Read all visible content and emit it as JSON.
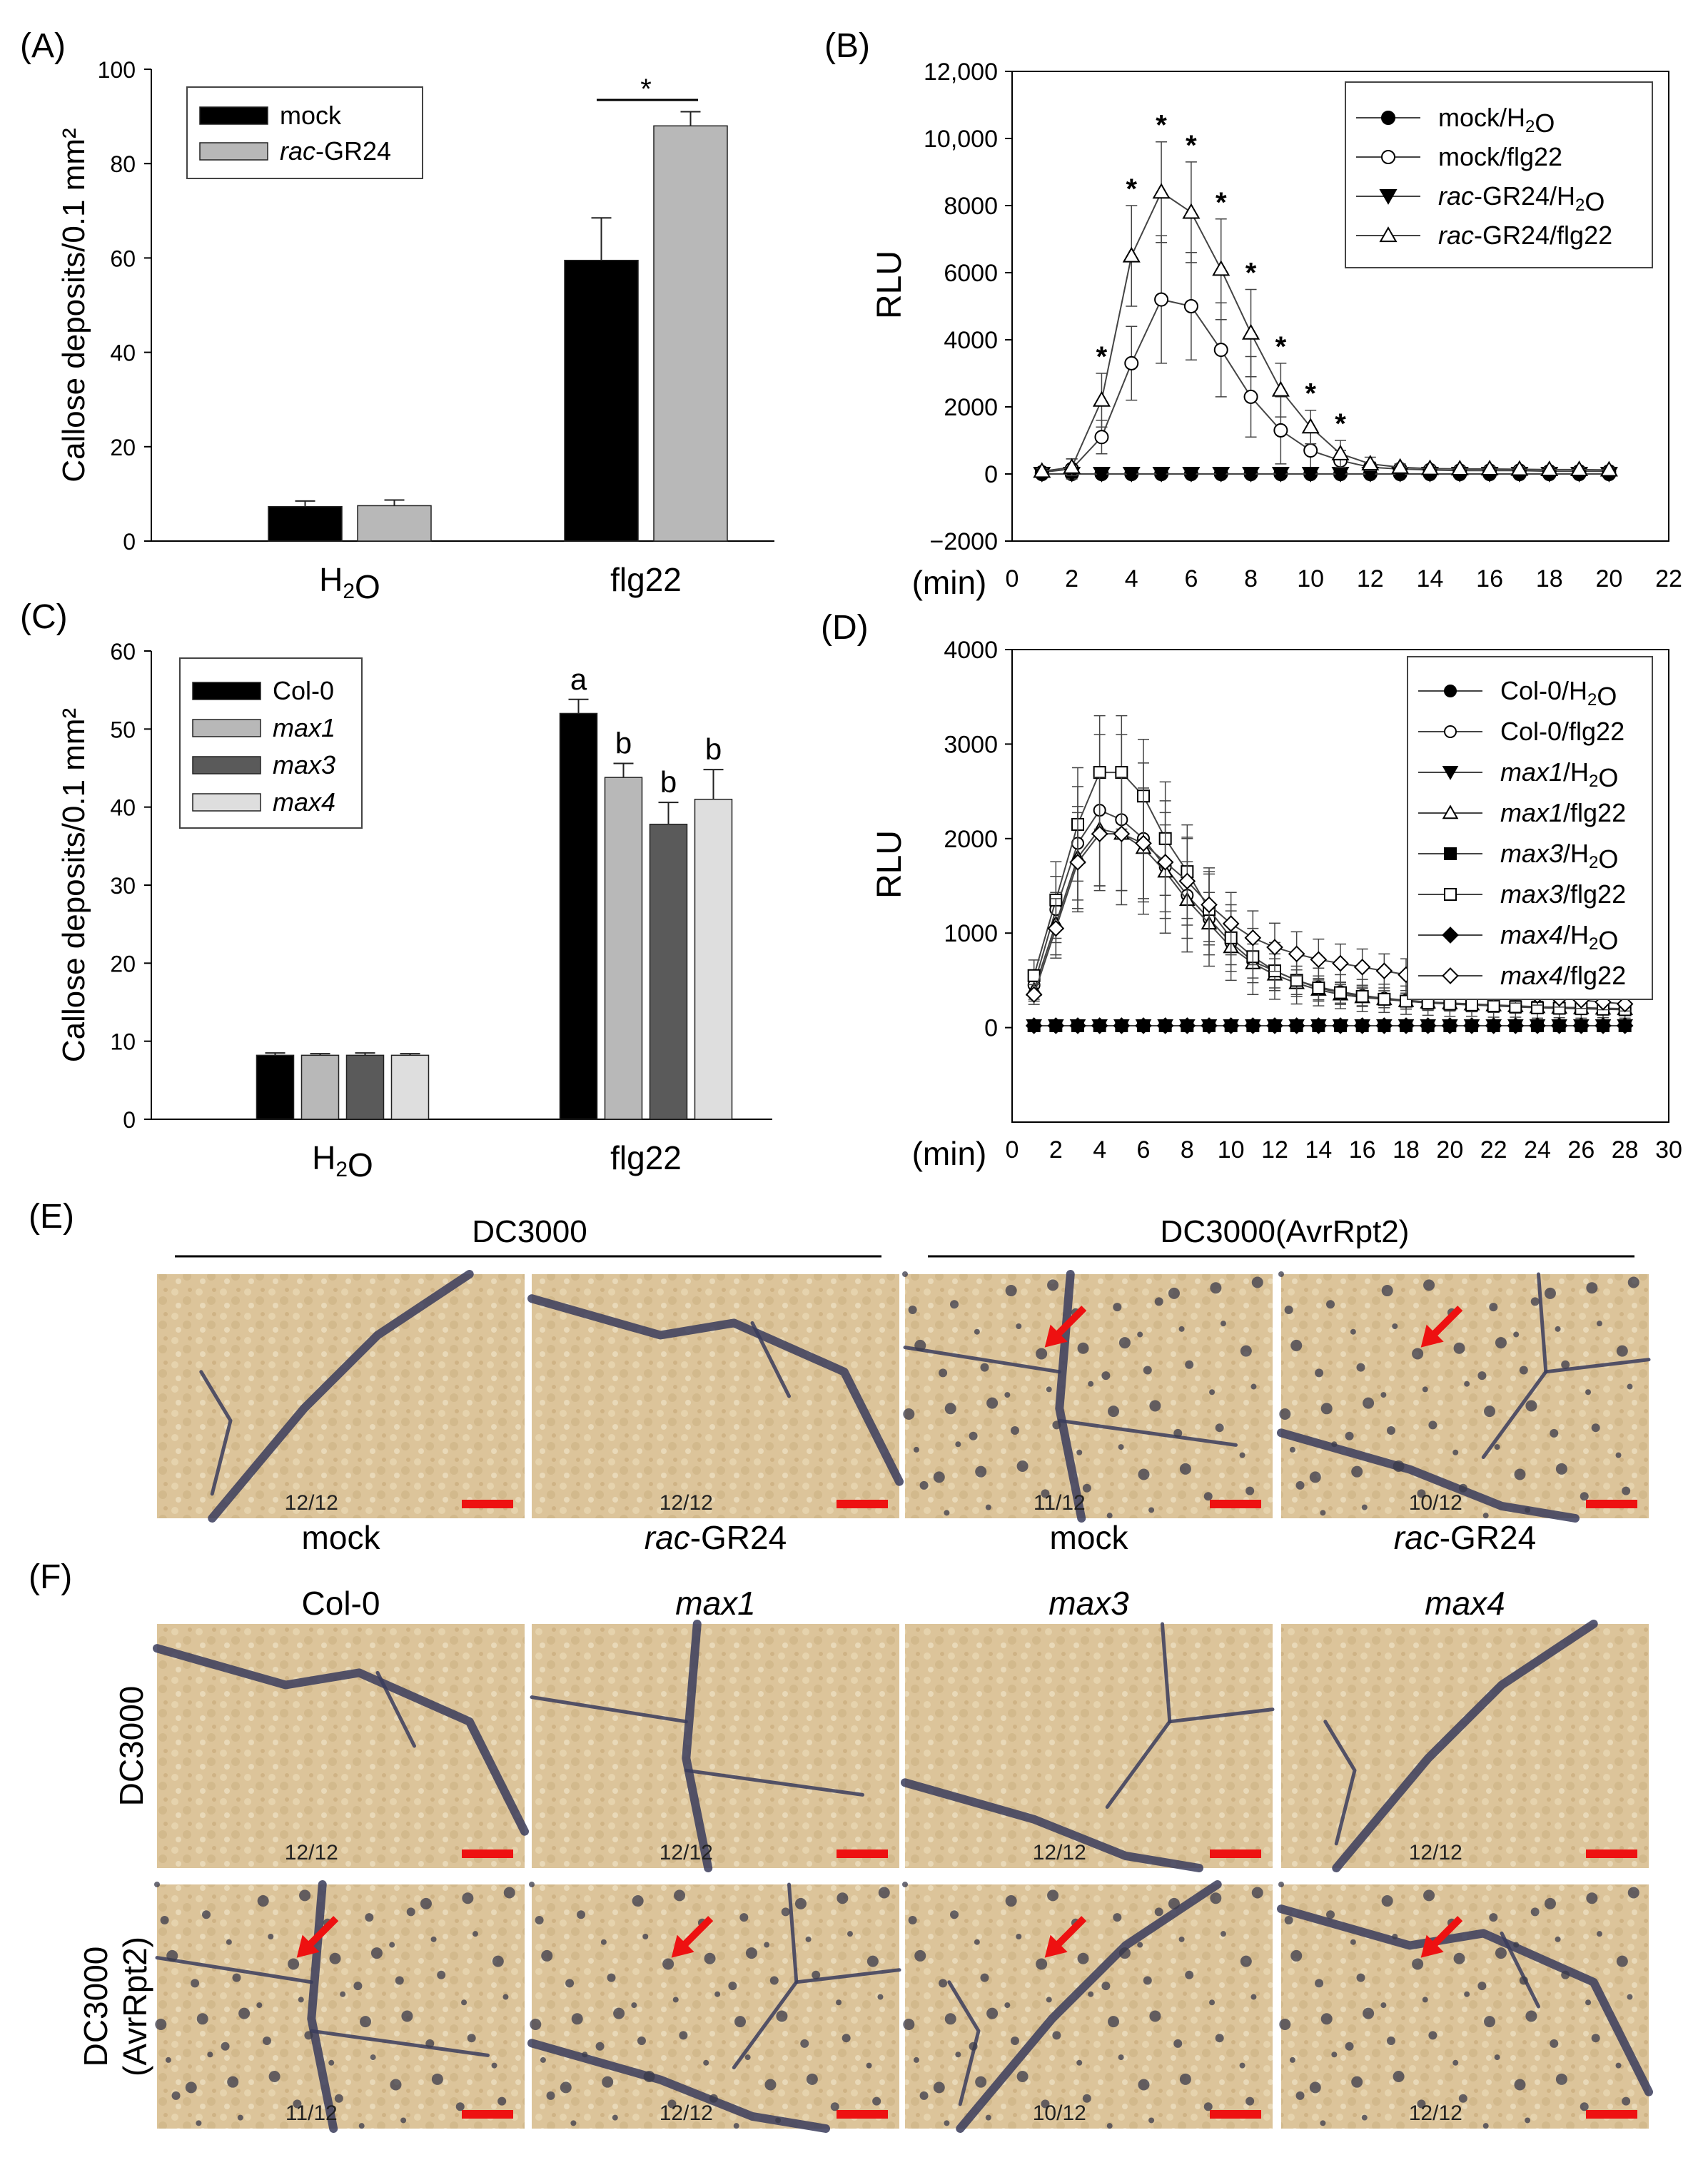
{
  "panels": {
    "a": "(A)",
    "b": "(B)",
    "c": "(C)",
    "d": "(D)",
    "e": "(E)",
    "f": "(F)"
  },
  "colors": {
    "black": "#000000",
    "gray_light": "#b8b8b8",
    "gray_dark": "#5a5a5a",
    "gray_pale": "#dedede",
    "leaf": "#dcc49a",
    "vein": "#35375a",
    "scale": "#ee1111"
  },
  "chart_data": [
    {
      "id": "A",
      "type": "bar",
      "ylabel": "Callose deposits/0.1 mm²",
      "ylim": [
        0,
        100
      ],
      "yticks": [
        0,
        20,
        40,
        60,
        80,
        100
      ],
      "categories": [
        "H₂O",
        "flg22"
      ],
      "series": [
        {
          "name": "mock",
          "color": "#000000",
          "values": [
            7.3,
            59.5
          ],
          "errors": [
            1.2,
            9
          ]
        },
        {
          "name": "rac-GR24",
          "color": "#b8b8b8",
          "values": [
            7.5,
            88
          ],
          "errors": [
            1.2,
            3
          ]
        }
      ],
      "annotations": [
        {
          "text": "*",
          "category": "flg22"
        }
      ],
      "legend": [
        "mock",
        "rac-GR24"
      ]
    },
    {
      "id": "B",
      "type": "line",
      "ylabel": "RLU",
      "xlabel": "(min)",
      "xlim": [
        0,
        22
      ],
      "ylim": [
        -2000,
        12000
      ],
      "xticks": [
        0,
        2,
        4,
        6,
        8,
        10,
        12,
        14,
        16,
        18,
        20,
        22
      ],
      "yticks": [
        -2000,
        0,
        2000,
        4000,
        6000,
        8000,
        10000,
        12000
      ],
      "ytick_labels": [
        "−2000",
        "0",
        "2000",
        "4000",
        "6000",
        "8000",
        "10,000",
        "12,000"
      ],
      "x": [
        1,
        2,
        3,
        4,
        5,
        6,
        7,
        8,
        9,
        10,
        11,
        12,
        13,
        14,
        15,
        16,
        17,
        18,
        19,
        20
      ],
      "series": [
        {
          "name": "mock/H₂O",
          "marker": "circle-filled",
          "values": [
            0,
            0,
            0,
            0,
            0,
            0,
            0,
            0,
            0,
            0,
            0,
            0,
            0,
            0,
            0,
            0,
            0,
            0,
            0,
            0
          ]
        },
        {
          "name": "mock/flg22",
          "marker": "circle-open",
          "values": [
            50,
            150,
            1100,
            3300,
            5200,
            5000,
            3700,
            2300,
            1300,
            700,
            400,
            200,
            150,
            120,
            100,
            100,
            100,
            80,
            80,
            80
          ],
          "errors": [
            80,
            300,
            500,
            1100,
            1900,
            1600,
            1400,
            1200,
            1000,
            600,
            300,
            150,
            100,
            80,
            70,
            70,
            60,
            60,
            60,
            60
          ]
        },
        {
          "name": "rac-GR24/H₂O",
          "marker": "triangle-filled",
          "values": [
            0,
            0,
            0,
            0,
            0,
            0,
            0,
            0,
            0,
            0,
            0,
            0,
            0,
            0,
            0,
            0,
            0,
            0,
            0,
            0
          ]
        },
        {
          "name": "rac-GR24/flg22",
          "marker": "triangle-open",
          "values": [
            80,
            200,
            2200,
            6500,
            8400,
            7800,
            6100,
            4200,
            2500,
            1400,
            600,
            300,
            200,
            160,
            150,
            150,
            140,
            130,
            130,
            120
          ],
          "errors": [
            80,
            250,
            800,
            1500,
            1500,
            1500,
            1500,
            1300,
            800,
            500,
            400,
            200,
            100,
            80,
            70,
            70,
            60,
            60,
            60,
            60
          ]
        }
      ],
      "stars_x": [
        3,
        4,
        5,
        6,
        7,
        8,
        9,
        10,
        11
      ],
      "legend": [
        "mock/H₂O",
        "mock/flg22",
        "rac-GR24/H₂O",
        "rac-GR24/flg22"
      ]
    },
    {
      "id": "C",
      "type": "bar",
      "ylabel": "Callose deposits/0.1 mm²",
      "ylim": [
        0,
        60
      ],
      "yticks": [
        0,
        10,
        20,
        30,
        40,
        50,
        60
      ],
      "categories": [
        "H₂O",
        "flg22"
      ],
      "series": [
        {
          "name": "Col-0",
          "color": "#000000",
          "values": [
            8.2,
            52
          ],
          "errors": [
            0.3,
            1.8
          ],
          "letters": [
            "",
            "a"
          ]
        },
        {
          "name": "max1",
          "color": "#b8b8b8",
          "values": [
            8.2,
            43.8
          ],
          "errors": [
            0.2,
            1.8
          ],
          "letters": [
            "",
            "b"
          ]
        },
        {
          "name": "max3",
          "color": "#5a5a5a",
          "values": [
            8.2,
            37.8
          ],
          "errors": [
            0.3,
            2.8
          ],
          "letters": [
            "",
            "b"
          ]
        },
        {
          "name": "max4",
          "color": "#dedede",
          "values": [
            8.2,
            41
          ],
          "errors": [
            0.2,
            3.8
          ],
          "letters": [
            "",
            "b"
          ]
        }
      ],
      "legend": [
        "Col-0",
        "max1",
        "max3",
        "max4"
      ]
    },
    {
      "id": "D",
      "type": "line",
      "ylabel": "RLU",
      "xlabel": "(min)",
      "xlim": [
        0,
        30
      ],
      "ylim": [
        -1000,
        4000
      ],
      "xticks": [
        0,
        2,
        4,
        6,
        8,
        10,
        12,
        14,
        16,
        18,
        20,
        22,
        24,
        26,
        28,
        30
      ],
      "yticks": [
        0,
        1000,
        2000,
        3000,
        4000
      ],
      "x": [
        1,
        2,
        3,
        4,
        5,
        6,
        7,
        8,
        9,
        10,
        11,
        12,
        13,
        14,
        15,
        16,
        17,
        18,
        19,
        20,
        21,
        22,
        23,
        24,
        25,
        26,
        27,
        28
      ],
      "series": [
        {
          "name": "Col-0/H₂O",
          "marker": "circle-filled",
          "values": [
            20,
            20,
            20,
            20,
            20,
            20,
            20,
            20,
            20,
            20,
            20,
            20,
            20,
            20,
            20,
            20,
            20,
            20,
            20,
            20,
            20,
            20,
            20,
            20,
            20,
            20,
            20,
            20
          ]
        },
        {
          "name": "Col-0/flg22",
          "marker": "circle-open",
          "values": [
            450,
            1250,
            1950,
            2300,
            2200,
            2000,
            1700,
            1400,
            1150,
            900,
            700,
            600,
            500,
            430,
            380,
            340,
            310,
            290,
            270,
            260,
            250,
            240,
            230,
            220,
            215,
            210,
            205,
            200
          ],
          "errors": [
            150,
            350,
            600,
            800,
            900,
            800,
            700,
            600,
            500,
            400,
            350,
            300,
            250,
            200,
            180,
            170,
            150,
            150,
            140,
            140,
            130,
            130,
            120,
            120,
            110,
            110,
            100,
            100
          ]
        },
        {
          "name": "max1/H₂O",
          "marker": "triangle-filled",
          "values": [
            20,
            20,
            20,
            20,
            20,
            20,
            20,
            20,
            20,
            20,
            20,
            20,
            20,
            20,
            20,
            20,
            20,
            20,
            20,
            20,
            20,
            20,
            20,
            20,
            20,
            20,
            20,
            20
          ]
        },
        {
          "name": "max1/flg22",
          "marker": "triangle-open",
          "values": [
            400,
            1100,
            1800,
            2100,
            2050,
            1900,
            1650,
            1350,
            1100,
            850,
            680,
            560,
            470,
            400,
            350,
            320,
            300,
            280,
            265,
            255,
            245,
            235,
            225,
            215,
            210,
            205,
            200,
            195
          ]
        },
        {
          "name": "max3/H₂O",
          "marker": "square-filled",
          "values": [
            20,
            20,
            20,
            20,
            20,
            20,
            20,
            20,
            20,
            20,
            20,
            20,
            20,
            20,
            20,
            20,
            20,
            20,
            20,
            20,
            20,
            20,
            20,
            20,
            20,
            20,
            20,
            20
          ]
        },
        {
          "name": "max3/flg22",
          "marker": "square-open",
          "values": [
            550,
            1350,
            2150,
            2700,
            2700,
            2450,
            2000,
            1650,
            1250,
            950,
            750,
            600,
            500,
            420,
            370,
            330,
            300,
            280,
            260,
            250,
            240,
            230,
            220,
            210,
            205,
            200,
            195,
            190
          ]
        },
        {
          "name": "max4/H₂O",
          "marker": "diamond-filled",
          "values": [
            20,
            20,
            20,
            20,
            20,
            20,
            20,
            20,
            20,
            20,
            20,
            20,
            20,
            20,
            20,
            20,
            20,
            20,
            20,
            20,
            20,
            20,
            20,
            20,
            20,
            20,
            20,
            20
          ]
        },
        {
          "name": "max4/flg22",
          "marker": "diamond-open",
          "values": [
            350,
            1050,
            1750,
            2050,
            2050,
            1950,
            1750,
            1550,
            1300,
            1100,
            950,
            850,
            780,
            720,
            680,
            640,
            600,
            560,
            520,
            480,
            440,
            400,
            370,
            340,
            310,
            290,
            270,
            250
          ]
        }
      ],
      "legend": [
        "Col-0/H₂O",
        "Col-0/flg22",
        "max1/H₂O",
        "max1/flg22",
        "max3/H₂O",
        "max3/flg22",
        "max4/H₂O",
        "max4/flg22"
      ]
    }
  ],
  "panel_e": {
    "groups": [
      "DC3000",
      "DC3000(AvrRpt2)"
    ],
    "images": [
      {
        "count": "12/12",
        "label": "mock",
        "lesions": false
      },
      {
        "count": "12/12",
        "label": "rac-GR24",
        "lesions": false
      },
      {
        "count": "11/12",
        "label": "mock",
        "lesions": true
      },
      {
        "count": "10/12",
        "label": "rac-GR24",
        "lesions": true
      }
    ]
  },
  "panel_f": {
    "columns": [
      "Col-0",
      "max1",
      "max3",
      "max4"
    ],
    "rows": [
      {
        "label": "DC3000",
        "counts": [
          "12/12",
          "12/12",
          "12/12",
          "12/12"
        ],
        "lesions": false
      },
      {
        "label_line1": "DC3000",
        "label_line2": "(AvrRpt2)",
        "counts": [
          "11/12",
          "12/12",
          "10/12",
          "12/12"
        ],
        "lesions": true
      }
    ]
  }
}
